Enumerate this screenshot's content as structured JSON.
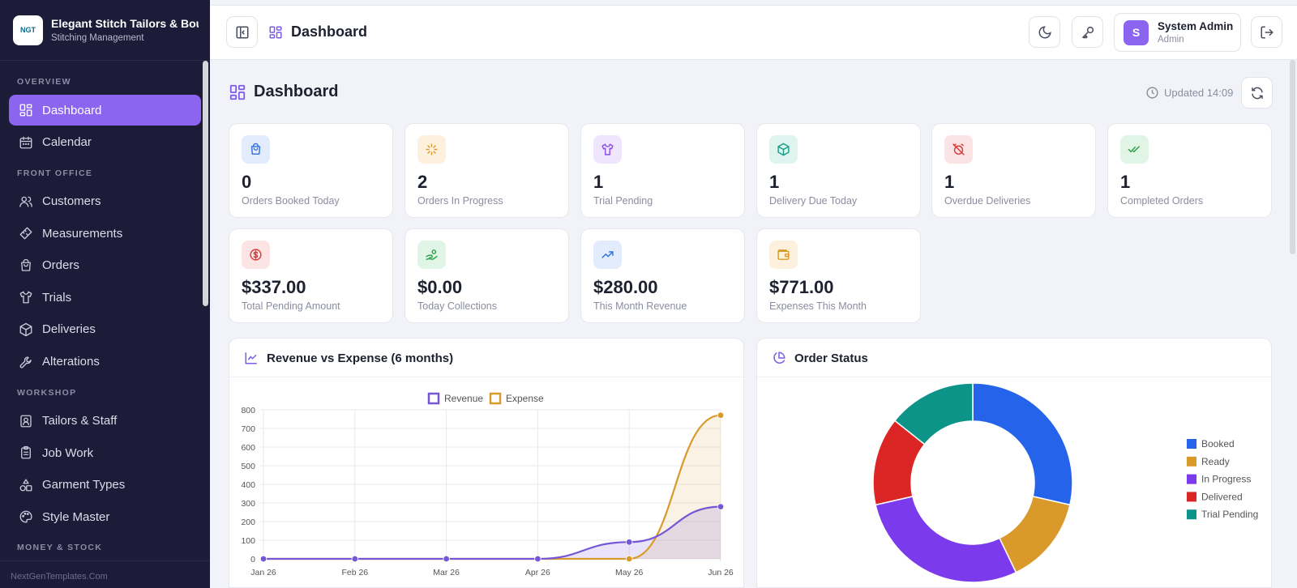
{
  "brand": {
    "logo_text": "NGT",
    "title": "Elegant Stitch Tailors & Boutique",
    "subtitle": "Stitching Management"
  },
  "sidebar": {
    "sections": [
      {
        "label": "OVERVIEW",
        "items": [
          {
            "label": "Dashboard",
            "icon": "dashboard-icon",
            "active": true
          },
          {
            "label": "Calendar",
            "icon": "calendar-icon"
          }
        ]
      },
      {
        "label": "FRONT OFFICE",
        "items": [
          {
            "label": "Customers",
            "icon": "users-icon"
          },
          {
            "label": "Measurements",
            "icon": "ruler-icon"
          },
          {
            "label": "Orders",
            "icon": "shopping-bag-icon"
          },
          {
            "label": "Trials",
            "icon": "shirt-icon"
          },
          {
            "label": "Deliveries",
            "icon": "package-icon"
          },
          {
            "label": "Alterations",
            "icon": "wrench-icon"
          }
        ]
      },
      {
        "label": "WORKSHOP",
        "items": [
          {
            "label": "Tailors & Staff",
            "icon": "id-badge-icon"
          },
          {
            "label": "Job Work",
            "icon": "clipboard-icon"
          },
          {
            "label": "Garment Types",
            "icon": "shapes-icon"
          },
          {
            "label": "Style Master",
            "icon": "palette-icon"
          }
        ]
      },
      {
        "label": "MONEY & STOCK",
        "items": []
      }
    ],
    "footer": "NextGenTemplates.Com"
  },
  "topbar": {
    "title": "Dashboard",
    "user": {
      "initial": "S",
      "name": "System Admin",
      "role": "Admin"
    }
  },
  "page": {
    "title": "Dashboard",
    "updated": "Updated 14:09"
  },
  "stats": [
    {
      "value": "0",
      "label": "Orders Booked Today",
      "icon": "shopping-bag-icon",
      "bg": "#e3ecfd",
      "fg": "#2f6fe0"
    },
    {
      "value": "2",
      "label": "Orders In Progress",
      "icon": "loader-icon",
      "bg": "#fdf1de",
      "fg": "#d99a2b"
    },
    {
      "value": "1",
      "label": "Trial Pending",
      "icon": "shirt-icon",
      "bg": "#efe6fd",
      "fg": "#8b4fe0"
    },
    {
      "value": "1",
      "label": "Delivery Due Today",
      "icon": "package-icon",
      "bg": "#dff4ef",
      "fg": "#179b86"
    },
    {
      "value": "1",
      "label": "Overdue Deliveries",
      "icon": "alarm-off-icon",
      "bg": "#fde4e4",
      "fg": "#d63939"
    },
    {
      "value": "1",
      "label": "Completed Orders",
      "icon": "check-double-icon",
      "bg": "#e1f5e6",
      "fg": "#27a047"
    },
    {
      "value": "$337.00",
      "label": "Total Pending Amount",
      "icon": "dollar-circle-icon",
      "bg": "#fde4e4",
      "fg": "#d63939"
    },
    {
      "value": "$0.00",
      "label": "Today Collections",
      "icon": "hand-coins-icon",
      "bg": "#e1f5e6",
      "fg": "#27a047"
    },
    {
      "value": "$280.00",
      "label": "This Month Revenue",
      "icon": "trending-up-icon",
      "bg": "#e3ecfd",
      "fg": "#2f6fe0"
    },
    {
      "value": "$771.00",
      "label": "Expenses This Month",
      "icon": "wallet-icon",
      "bg": "#fdf1de",
      "fg": "#d99a2b"
    }
  ],
  "panels": {
    "revenue_title": "Revenue vs Expense (6 months)",
    "status_title": "Order Status"
  },
  "chart_data": [
    {
      "type": "line",
      "title": "Revenue vs Expense (6 months)",
      "x": [
        "Jan 26",
        "Feb 26",
        "Mar 26",
        "Apr 26",
        "May 26",
        "Jun 26"
      ],
      "series": [
        {
          "name": "Revenue",
          "values": [
            0,
            0,
            0,
            0,
            90,
            280
          ],
          "color": "#7557d6"
        },
        {
          "name": "Expense",
          "values": [
            0,
            0,
            0,
            0,
            0,
            771
          ],
          "color": "#d99a2b"
        }
      ],
      "ylim": [
        0,
        800
      ],
      "yticks": [
        0,
        100,
        200,
        300,
        400,
        500,
        600,
        700,
        800
      ],
      "grid": true,
      "legend": "top-center"
    },
    {
      "type": "pie",
      "title": "Order Status",
      "donut": true,
      "categories": [
        "Booked",
        "Ready",
        "In Progress",
        "Delivered",
        "Trial Pending"
      ],
      "values": [
        2,
        1,
        2,
        1,
        1
      ],
      "colors": [
        "#2563eb",
        "#d99a2b",
        "#7c3aed",
        "#dc2626",
        "#0d9488"
      ],
      "legend": "right"
    }
  ]
}
